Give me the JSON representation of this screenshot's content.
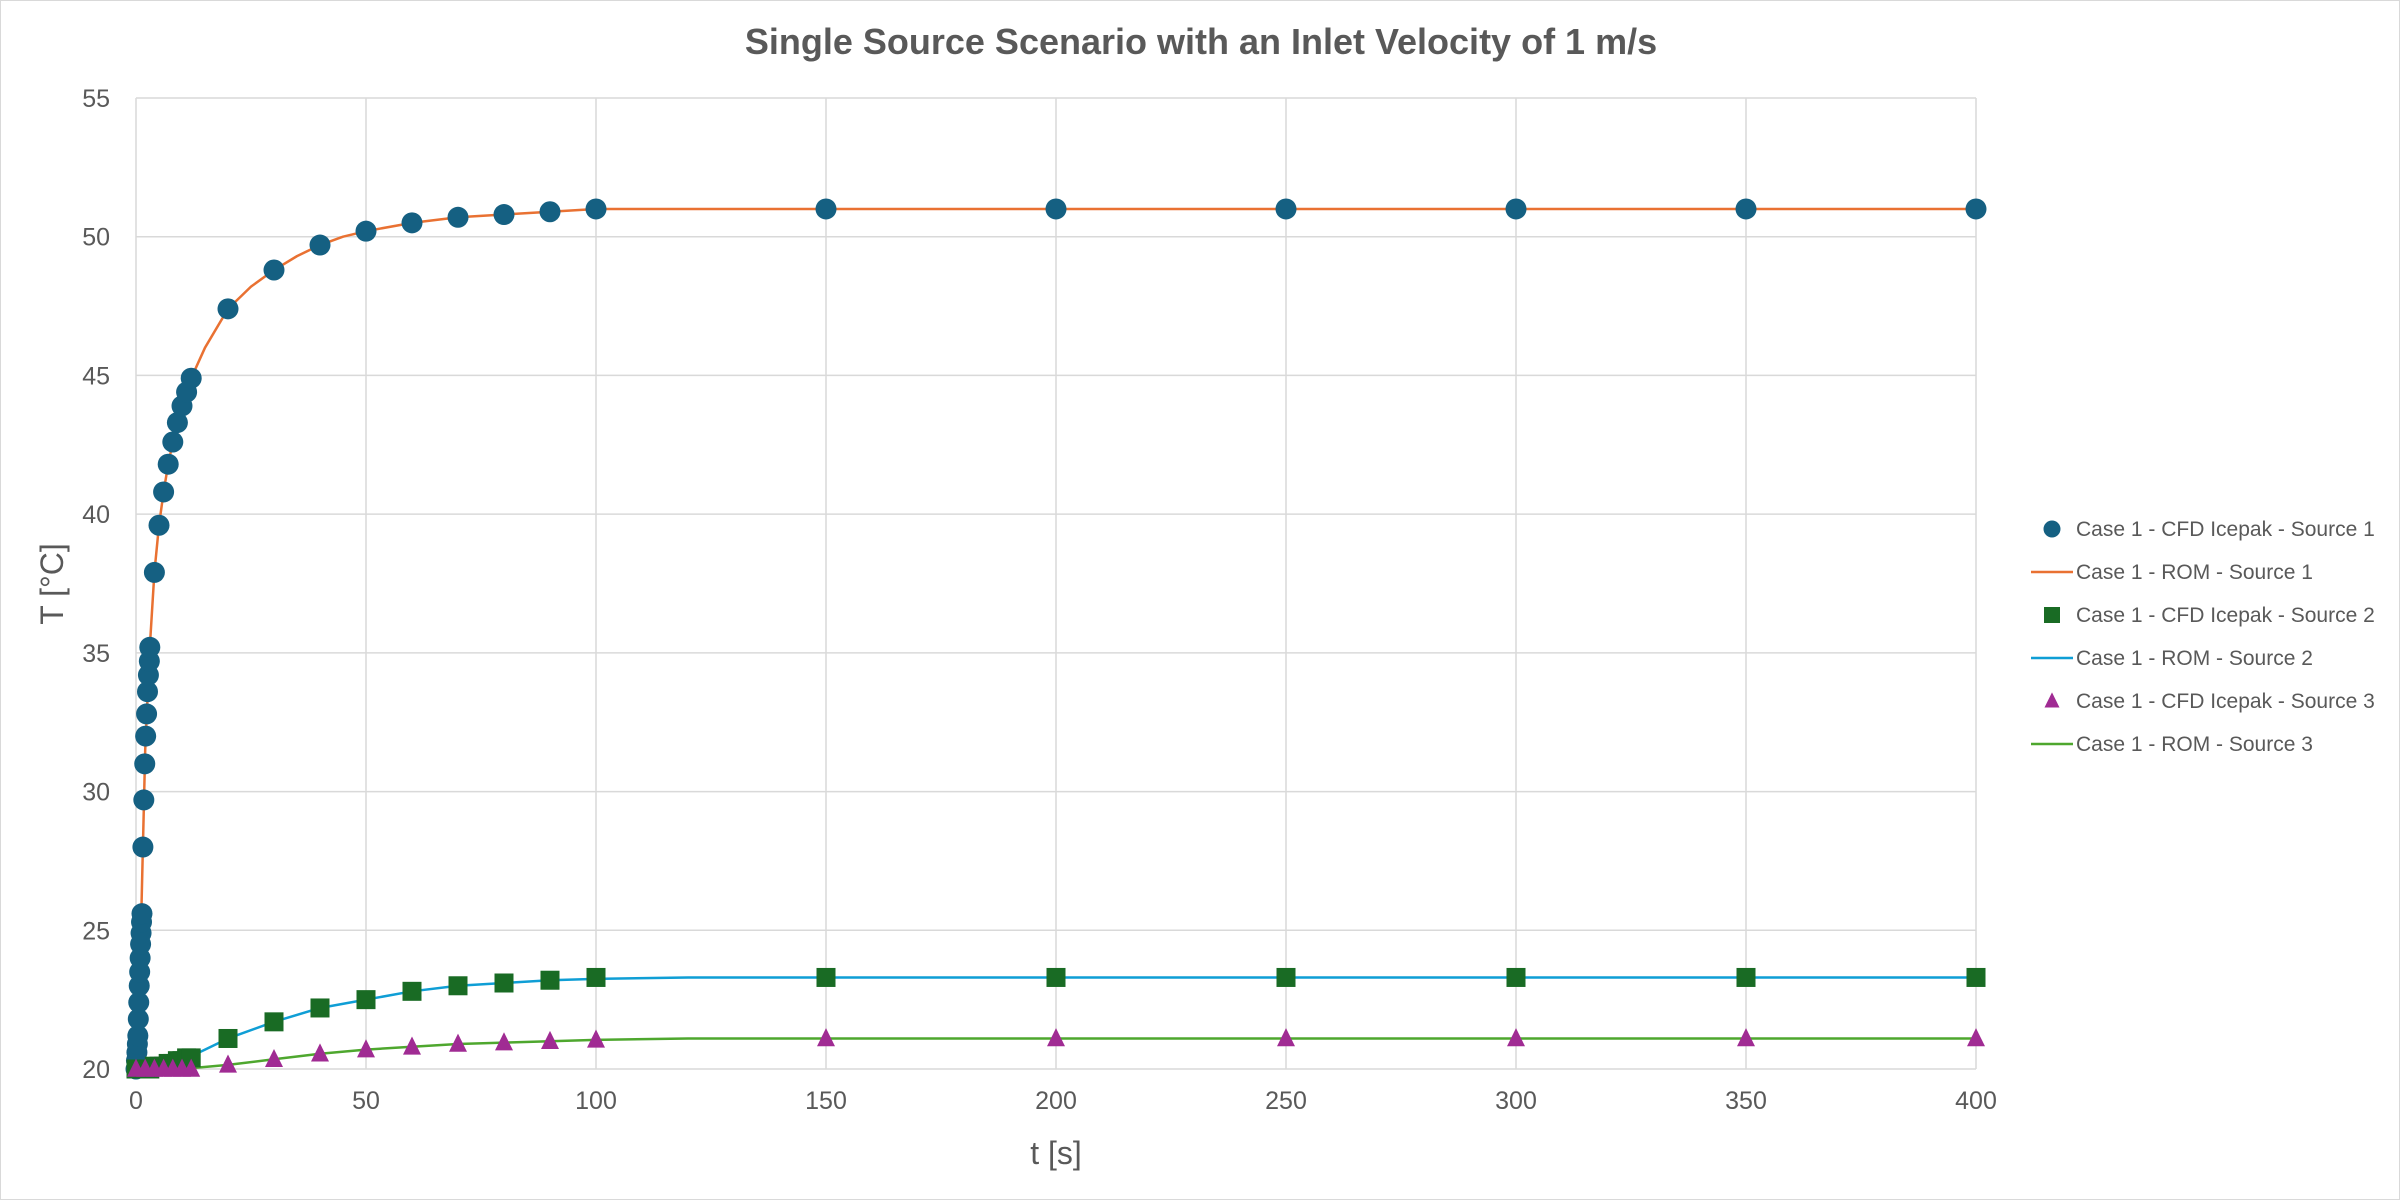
{
  "chart_data": {
    "type": "scatter",
    "title": "Single Source Scenario with an Inlet Velocity of 1 m/s",
    "xlabel": "t [s]",
    "ylabel": "T [°C]",
    "xlim": [
      0,
      400
    ],
    "ylim": [
      20,
      55
    ],
    "x_ticks": [
      0,
      50,
      100,
      150,
      200,
      250,
      300,
      350,
      400
    ],
    "y_ticks": [
      20,
      25,
      30,
      35,
      40,
      45,
      50,
      55
    ],
    "grid": true,
    "legend_position": "right",
    "series": [
      {
        "name": "Case 1 - CFD Icepak - Source 1",
        "kind": "markers",
        "marker": "circle",
        "color": "#156082",
        "points": [
          [
            0,
            20.0
          ],
          [
            0.1,
            20.3
          ],
          [
            0.2,
            20.6
          ],
          [
            0.3,
            20.9
          ],
          [
            0.4,
            21.2
          ],
          [
            0.5,
            21.8
          ],
          [
            0.6,
            22.4
          ],
          [
            0.7,
            23.0
          ],
          [
            0.8,
            23.5
          ],
          [
            0.9,
            24.0
          ],
          [
            1.0,
            24.5
          ],
          [
            1.1,
            24.9
          ],
          [
            1.2,
            25.3
          ],
          [
            1.3,
            25.6
          ],
          [
            1.5,
            28.0
          ],
          [
            1.7,
            29.7
          ],
          [
            1.9,
            31.0
          ],
          [
            2.1,
            32.0
          ],
          [
            2.3,
            32.8
          ],
          [
            2.5,
            33.6
          ],
          [
            2.7,
            34.2
          ],
          [
            2.9,
            34.7
          ],
          [
            3.0,
            35.2
          ],
          [
            4,
            37.9
          ],
          [
            5,
            39.6
          ],
          [
            6,
            40.8
          ],
          [
            7,
            41.8
          ],
          [
            8,
            42.6
          ],
          [
            9,
            43.3
          ],
          [
            10,
            43.9
          ],
          [
            11,
            44.4
          ],
          [
            12,
            44.9
          ],
          [
            20,
            47.4
          ],
          [
            30,
            48.8
          ],
          [
            40,
            49.7
          ],
          [
            50,
            50.2
          ],
          [
            60,
            50.5
          ],
          [
            70,
            50.7
          ],
          [
            80,
            50.8
          ],
          [
            90,
            50.9
          ],
          [
            100,
            51.0
          ],
          [
            150,
            51.0
          ],
          [
            200,
            51.0
          ],
          [
            250,
            51.0
          ],
          [
            300,
            51.0
          ],
          [
            350,
            51.0
          ],
          [
            400,
            51.0
          ]
        ]
      },
      {
        "name": "Case 1 - ROM - Source 1",
        "kind": "line",
        "color": "#E97132",
        "points": [
          [
            0,
            20.0
          ],
          [
            0.5,
            21.8
          ],
          [
            1,
            24.5
          ],
          [
            1.5,
            28.0
          ],
          [
            2,
            31.5
          ],
          [
            3,
            35.2
          ],
          [
            4,
            37.9
          ],
          [
            5,
            39.6
          ],
          [
            6,
            40.8
          ],
          [
            7,
            41.8
          ],
          [
            8,
            42.6
          ],
          [
            9,
            43.3
          ],
          [
            10,
            43.9
          ],
          [
            12,
            44.9
          ],
          [
            15,
            46.0
          ],
          [
            20,
            47.4
          ],
          [
            25,
            48.2
          ],
          [
            30,
            48.8
          ],
          [
            35,
            49.3
          ],
          [
            40,
            49.7
          ],
          [
            45,
            50.0
          ],
          [
            50,
            50.2
          ],
          [
            60,
            50.5
          ],
          [
            70,
            50.7
          ],
          [
            80,
            50.8
          ],
          [
            90,
            50.9
          ],
          [
            100,
            51.0
          ],
          [
            120,
            51.0
          ],
          [
            150,
            51.0
          ],
          [
            200,
            51.0
          ],
          [
            250,
            51.0
          ],
          [
            300,
            51.0
          ],
          [
            350,
            51.0
          ],
          [
            400,
            51.0
          ]
        ]
      },
      {
        "name": "Case 1 - CFD Icepak - Source 2",
        "kind": "markers",
        "marker": "square",
        "color": "#196B24",
        "points": [
          [
            0,
            20.0
          ],
          [
            1,
            20.0
          ],
          [
            2,
            20.0
          ],
          [
            3,
            20.0
          ],
          [
            4,
            20.1
          ],
          [
            5,
            20.1
          ],
          [
            6,
            20.1
          ],
          [
            7,
            20.2
          ],
          [
            8,
            20.2
          ],
          [
            9,
            20.3
          ],
          [
            10,
            20.3
          ],
          [
            11,
            20.4
          ],
          [
            12,
            20.4
          ],
          [
            20,
            21.1
          ],
          [
            30,
            21.7
          ],
          [
            40,
            22.2
          ],
          [
            50,
            22.5
          ],
          [
            60,
            22.8
          ],
          [
            70,
            23.0
          ],
          [
            80,
            23.1
          ],
          [
            90,
            23.2
          ],
          [
            100,
            23.3
          ],
          [
            150,
            23.3
          ],
          [
            200,
            23.3
          ],
          [
            250,
            23.3
          ],
          [
            300,
            23.3
          ],
          [
            350,
            23.3
          ],
          [
            400,
            23.3
          ]
        ]
      },
      {
        "name": "Case 1 - ROM - Source 2",
        "kind": "line",
        "color": "#0F9ED5",
        "points": [
          [
            0,
            20.0
          ],
          [
            5,
            20.1
          ],
          [
            10,
            20.3
          ],
          [
            15,
            20.7
          ],
          [
            20,
            21.1
          ],
          [
            30,
            21.7
          ],
          [
            40,
            22.2
          ],
          [
            50,
            22.5
          ],
          [
            60,
            22.8
          ],
          [
            70,
            23.0
          ],
          [
            80,
            23.1
          ],
          [
            90,
            23.2
          ],
          [
            100,
            23.25
          ],
          [
            120,
            23.3
          ],
          [
            150,
            23.3
          ],
          [
            200,
            23.3
          ],
          [
            250,
            23.3
          ],
          [
            300,
            23.3
          ],
          [
            350,
            23.3
          ],
          [
            400,
            23.3
          ]
        ]
      },
      {
        "name": "Case 1 - CFD Icepak - Source 3",
        "kind": "markers",
        "marker": "triangle",
        "color": "#A02B93",
        "points": [
          [
            0,
            20.0
          ],
          [
            2,
            20.0
          ],
          [
            4,
            20.0
          ],
          [
            6,
            20.0
          ],
          [
            8,
            20.0
          ],
          [
            10,
            20.0
          ],
          [
            12,
            20.0
          ],
          [
            20,
            20.15
          ],
          [
            30,
            20.35
          ],
          [
            40,
            20.55
          ],
          [
            50,
            20.7
          ],
          [
            60,
            20.8
          ],
          [
            70,
            20.9
          ],
          [
            80,
            20.95
          ],
          [
            90,
            21.0
          ],
          [
            100,
            21.05
          ],
          [
            150,
            21.1
          ],
          [
            200,
            21.1
          ],
          [
            250,
            21.1
          ],
          [
            300,
            21.1
          ],
          [
            350,
            21.1
          ],
          [
            400,
            21.1
          ]
        ]
      },
      {
        "name": "Case 1 - ROM - Source 3",
        "kind": "line",
        "color": "#4EA72E",
        "points": [
          [
            0,
            20.0
          ],
          [
            10,
            20.0
          ],
          [
            20,
            20.15
          ],
          [
            30,
            20.35
          ],
          [
            40,
            20.55
          ],
          [
            50,
            20.7
          ],
          [
            60,
            20.8
          ],
          [
            70,
            20.9
          ],
          [
            80,
            20.95
          ],
          [
            90,
            21.0
          ],
          [
            100,
            21.05
          ],
          [
            120,
            21.1
          ],
          [
            150,
            21.1
          ],
          [
            200,
            21.1
          ],
          [
            250,
            21.1
          ],
          [
            300,
            21.1
          ],
          [
            350,
            21.1
          ],
          [
            400,
            21.1
          ]
        ]
      }
    ],
    "legend_order": [
      0,
      1,
      2,
      3,
      4,
      5
    ]
  },
  "colors": {
    "grid": "#d9d9d9",
    "text": "#595959"
  }
}
